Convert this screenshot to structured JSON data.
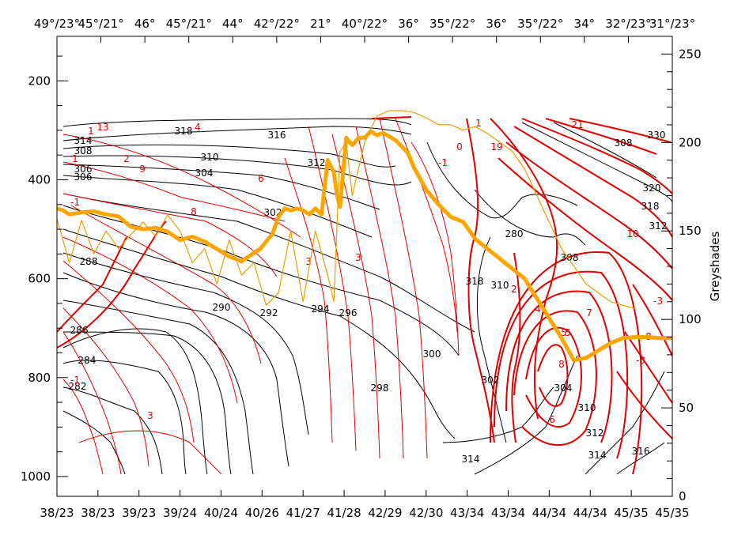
{
  "colors": {
    "theta_contours": "#000000",
    "rh_contours": "#e00000",
    "trajectory_pressure": "#ffa500",
    "greyshade_series": "#e8a000",
    "frame": "#000000"
  },
  "chart_data": {
    "type": "line",
    "title": "",
    "left_axis": {
      "label": "",
      "ylim": [
        1040,
        110
      ],
      "ticks": [
        200,
        400,
        600,
        800,
        1000
      ]
    },
    "right_axis": {
      "label": "Greyshades",
      "ylim": [
        0,
        260
      ],
      "ticks": [
        0,
        50,
        100,
        150,
        200,
        250
      ]
    },
    "top_tick_labels": [
      "49°/23°",
      "45°/21°",
      "46°",
      "45°/21°",
      "44°",
      "42°/22°",
      "21°",
      "40°/22°",
      "36°",
      "35°/22°",
      "36°",
      "35°/22°",
      "34°",
      "32°/23°",
      "31°/23°"
    ],
    "bottom_tick_labels": [
      "38/23",
      "38/23",
      "39/23",
      "39/24",
      "40/24",
      "40/26",
      "41/27",
      "41/28",
      "42/29",
      "42/30",
      "43/34",
      "43/34",
      "44/34",
      "44/34",
      "45/35",
      "45/35"
    ],
    "contour_labels_black": [
      "318",
      "316",
      "314",
      "310",
      "312",
      "308",
      "306",
      "306",
      "304",
      "302",
      "300",
      "298",
      "296",
      "294",
      "292",
      "290",
      "288",
      "286",
      "284",
      "282",
      "280",
      "310",
      "308",
      "314",
      "302",
      "304",
      "310",
      "312",
      "314",
      "316",
      "318",
      "308",
      "330",
      "320",
      "318",
      "312"
    ],
    "contour_labels_red": [
      "1",
      "13",
      "-1",
      "4",
      "6",
      "2",
      "9",
      "1",
      "8",
      "3",
      "-1",
      "3",
      "7",
      "5",
      "0",
      "1",
      "2",
      "4",
      "5",
      "6",
      "8",
      "3",
      "10",
      "21",
      "19",
      "-1",
      "-3",
      "8",
      "-3"
    ],
    "series": [
      {
        "name": "",
        "axis": "left",
        "x": [
          0.0,
          0.01,
          0.02,
          0.04,
          0.06,
          0.08,
          0.1,
          0.12,
          0.14,
          0.16,
          0.18,
          0.2,
          0.22,
          0.24,
          0.26,
          0.28,
          0.3,
          0.32,
          0.33,
          0.34,
          0.35,
          0.36,
          0.37,
          0.38,
          0.39,
          0.4,
          0.41,
          0.42,
          0.43,
          0.44,
          0.45,
          0.455,
          0.46,
          0.47,
          0.48,
          0.49,
          0.5,
          0.51,
          0.52,
          0.53,
          0.55,
          0.57,
          0.58,
          0.6,
          0.62,
          0.64,
          0.66,
          0.68,
          0.7,
          0.72,
          0.74,
          0.76,
          0.78,
          0.8,
          0.82,
          0.84,
          0.86,
          0.88,
          0.9,
          0.92,
          0.94,
          0.96,
          0.98,
          1.0
        ],
        "y": [
          458,
          462,
          470,
          466,
          464,
          470,
          474,
          495,
          500,
          497,
          505,
          522,
          515,
          525,
          540,
          555,
          565,
          548,
          540,
          525,
          510,
          475,
          458,
          462,
          458,
          462,
          470,
          458,
          470,
          360,
          385,
          430,
          455,
          315,
          330,
          315,
          315,
          302,
          310,
          305,
          320,
          345,
          375,
          420,
          450,
          475,
          485,
          520,
          540,
          560,
          580,
          600,
          640,
          680,
          720,
          765,
          760,
          745,
          730,
          720,
          718,
          718,
          720,
          720
        ]
      },
      {
        "name": "",
        "axis": "right",
        "x": [
          0.0,
          0.02,
          0.04,
          0.06,
          0.08,
          0.1,
          0.12,
          0.14,
          0.16,
          0.18,
          0.2,
          0.22,
          0.24,
          0.26,
          0.28,
          0.3,
          0.32,
          0.34,
          0.36,
          0.38,
          0.4,
          0.42,
          0.44,
          0.45,
          0.46,
          0.47,
          0.48,
          0.5,
          0.52,
          0.54,
          0.56,
          0.58,
          0.6,
          0.62,
          0.64,
          0.66,
          0.68,
          0.7,
          0.72,
          0.74,
          0.76,
          0.78,
          0.8,
          0.82,
          0.84,
          0.86,
          0.88,
          0.9,
          0.92,
          0.94
        ],
        "y": [
          157,
          132,
          156,
          137,
          150,
          140,
          148,
          155,
          147,
          159,
          150,
          132,
          140,
          120,
          145,
          125,
          132,
          108,
          115,
          150,
          110,
          150,
          125,
          110,
          195,
          200,
          170,
          200,
          215,
          218,
          218,
          217,
          214,
          210,
          210,
          207,
          209,
          205,
          200,
          195,
          185,
          170,
          155,
          140,
          130,
          120,
          115,
          110,
          108,
          106
        ]
      }
    ],
    "grid": false,
    "legend": "none"
  }
}
